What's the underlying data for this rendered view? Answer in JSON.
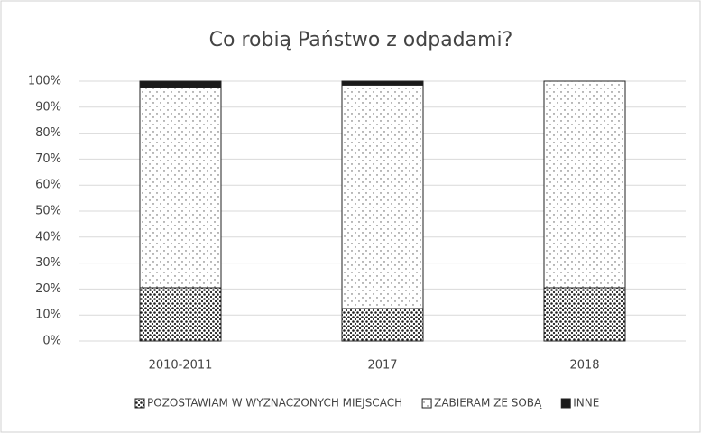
{
  "chart_data": {
    "type": "stacked_bar",
    "title": "Co robią Państwo z odpadami?",
    "categories": [
      "2010-2011",
      "2017",
      "2018"
    ],
    "series": [
      {
        "name": "POZOSTAWIAM W WYZNACZONYCH MIEJSCACH",
        "color": "#222222",
        "values": [
          20.5,
          12.5,
          20.5
        ]
      },
      {
        "name": "ZABIERAM ZE SOBĄ",
        "color": "#555555",
        "values": [
          77,
          86,
          79.5
        ]
      },
      {
        "name": "INNE",
        "color": "#1a1a1a",
        "values": [
          2.5,
          1.5,
          0
        ]
      }
    ],
    "ylim": [
      0,
      100
    ],
    "yticks": [
      {
        "value": 0,
        "label": "0%"
      },
      {
        "value": 10,
        "label": "10%"
      },
      {
        "value": 20,
        "label": "20%"
      },
      {
        "value": 30,
        "label": "30%"
      },
      {
        "value": 40,
        "label": "40%"
      },
      {
        "value": 50,
        "label": "50%"
      },
      {
        "value": 60,
        "label": "60%"
      },
      {
        "value": 70,
        "label": "70%"
      },
      {
        "value": 80,
        "label": "80%"
      },
      {
        "value": 90,
        "label": "90%"
      },
      {
        "value": 100,
        "label": "100%"
      }
    ],
    "grid": true,
    "legend": "bottom"
  }
}
